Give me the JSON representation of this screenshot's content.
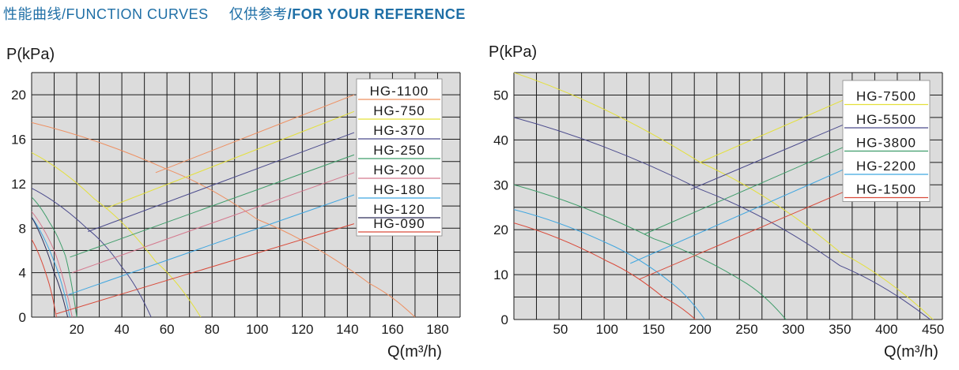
{
  "header": {
    "cn_curves": "性能曲线",
    "en_curves": "/FUNCTION CURVES",
    "cn_ref": "仅供参考",
    "en_ref": "/FOR YOUR REFERENCE"
  },
  "chart_data": [
    {
      "type": "line",
      "ylabel": "P(kPa)",
      "xlabel": "Q(m³/h)",
      "xlim": [
        0,
        190
      ],
      "ylim": [
        0,
        22
      ],
      "xticks": [
        20,
        40,
        60,
        80,
        100,
        120,
        140,
        160,
        180
      ],
      "yticks": [
        0,
        4,
        8,
        12,
        16,
        20
      ],
      "grid": true,
      "legend_position": "top-right",
      "series": [
        {
          "name": "HG-1100",
          "color": "#ee9062",
          "curve": [
            [
              0,
              17.5
            ],
            [
              60,
              13.3
            ],
            [
              100,
              8.8
            ],
            [
              150,
              3.0
            ],
            [
              170,
              0
            ]
          ],
          "eff_line": [
            [
              55,
              13
            ],
            [
              143,
              20
            ]
          ]
        },
        {
          "name": "HG-750",
          "color": "#e4e03a",
          "curve": [
            [
              0,
              14.8
            ],
            [
              28,
              10.6
            ],
            [
              55,
              5
            ],
            [
              75,
              0
            ]
          ],
          "eff_line": [
            [
              33,
              9.8
            ],
            [
              143,
              18.5
            ]
          ]
        },
        {
          "name": "HG-370",
          "color": "#4a4a8c",
          "curve": [
            [
              0,
              11.6
            ],
            [
              25,
              7.9
            ],
            [
              40,
              4.5
            ],
            [
              53,
              0
            ]
          ],
          "eff_line": [
            [
              25,
              7.7
            ],
            [
              143,
              16.6
            ]
          ]
        },
        {
          "name": "HG-250",
          "color": "#3f9d6a",
          "curve": [
            [
              0,
              10.8
            ],
            [
              8,
              8.5
            ],
            [
              15,
              5.5
            ],
            [
              20,
              0
            ]
          ],
          "eff_line": [
            [
              17,
              5.4
            ],
            [
              143,
              14.6
            ]
          ]
        },
        {
          "name": "HG-200",
          "color": "#d5798e",
          "curve": [
            [
              0,
              9.5
            ],
            [
              10,
              6
            ],
            [
              18,
              0
            ]
          ],
          "eff_line": [
            [
              18,
              4
            ],
            [
              143,
              13
            ]
          ]
        },
        {
          "name": "HG-180",
          "color": "#3fa6e0",
          "curve": [
            [
              0,
              9
            ],
            [
              10,
              5
            ],
            [
              17,
              0
            ]
          ],
          "eff_line": [
            [
              16,
              2
            ],
            [
              143,
              11
            ]
          ]
        },
        {
          "name": "HG-120",
          "color": "#2f2f5a",
          "curve": [
            [
              0,
              9
            ],
            [
              10,
              4
            ],
            [
              16,
              0
            ]
          ],
          "eff_line": []
        },
        {
          "name": "HG-090",
          "color": "#d94a3a",
          "curve": [
            [
              0,
              7
            ],
            [
              7,
              3.5
            ],
            [
              11,
              0
            ]
          ],
          "eff_line": [
            [
              11,
              0.3
            ],
            [
              143,
              8.4
            ]
          ]
        }
      ]
    },
    {
      "type": "line",
      "ylabel": "P(kPa)",
      "xlabel": "Q(m³/h)",
      "xlim": [
        0,
        460
      ],
      "ylim": [
        0,
        55
      ],
      "xticks": [
        50,
        100,
        150,
        200,
        250,
        300,
        350,
        400,
        450
      ],
      "yticks": [
        0,
        10,
        20,
        30,
        40,
        50
      ],
      "grid": true,
      "legend_position": "top-right",
      "series": [
        {
          "name": "HG-7500",
          "color": "#e4e03a",
          "curve": [
            [
              0,
              55
            ],
            [
              200,
              35
            ],
            [
              350,
              15
            ],
            [
              450,
              0
            ]
          ],
          "eff_line": [
            [
              200,
              35
            ],
            [
              355,
              49
            ]
          ]
        },
        {
          "name": "HG-5500",
          "color": "#4a4a8c",
          "curve": [
            [
              0,
              45
            ],
            [
              200,
              29
            ],
            [
              350,
              12
            ],
            [
              447,
              0
            ]
          ],
          "eff_line": [
            [
              190,
              29
            ],
            [
              355,
              43.5
            ]
          ]
        },
        {
          "name": "HG-3800",
          "color": "#3f9d6a",
          "curve": [
            [
              0,
              30
            ],
            [
              150,
              18
            ],
            [
              250,
              8
            ],
            [
              292,
              0
            ]
          ],
          "eff_line": [
            [
              140,
              19
            ],
            [
              355,
              38.5
            ]
          ]
        },
        {
          "name": "HG-2200",
          "color": "#3fa6e0",
          "curve": [
            [
              0,
              24.5
            ],
            [
              100,
              17
            ],
            [
              170,
              8
            ],
            [
              205,
              0
            ]
          ],
          "eff_line": [
            [
              125,
              12.5
            ],
            [
              355,
              33.5
            ]
          ]
        },
        {
          "name": "HG-1500",
          "color": "#d94a3a",
          "curve": [
            [
              0,
              21.5
            ],
            [
              100,
              13
            ],
            [
              160,
              5
            ],
            [
              195,
              0
            ]
          ],
          "eff_line": [
            [
              135,
              9
            ],
            [
              355,
              28.5
            ]
          ]
        }
      ]
    }
  ]
}
